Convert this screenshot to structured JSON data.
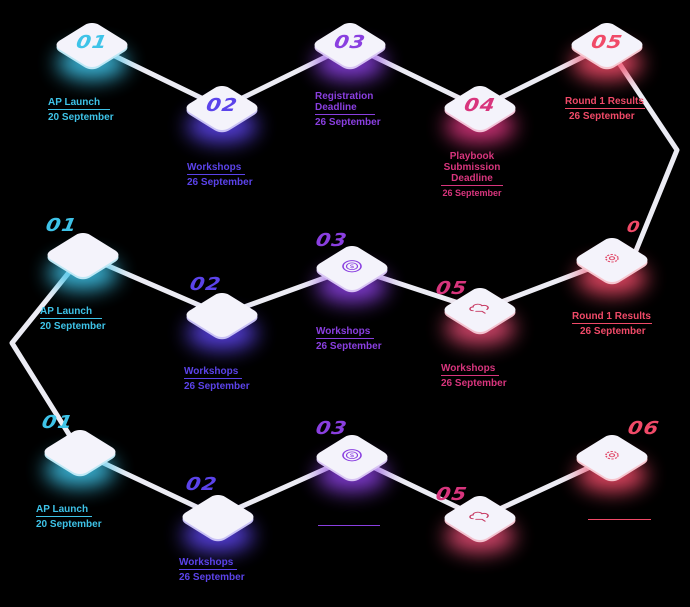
{
  "colors": {
    "cyan": "#3ec3e8",
    "blue": "#5b43ea",
    "purple": "#8a3fe0",
    "magenta": "#d8357d",
    "red": "#f04a68",
    "line": "#ececf4"
  },
  "row1": {
    "n1": "01",
    "n2": "02",
    "n3": "03",
    "n4": "04",
    "n5": "05",
    "l1": {
      "t": "AP Launch",
      "d": "20 September"
    },
    "l2": {
      "t": "Workshops",
      "d": "26 September"
    },
    "l3": {
      "t1": "Registration",
      "t2": "Deadline",
      "d": "26 September"
    },
    "l4": {
      "t1": "Playbook",
      "t2": "Submission",
      "t3": "Deadline",
      "d": "26 September"
    },
    "l5": {
      "t": "Round 1 Results",
      "d": "26 September"
    }
  },
  "row2": {
    "n1": "01",
    "n2": "02",
    "n3": "03",
    "n5": "05",
    "n6": "0",
    "l1": {
      "t": "AP Launch",
      "d": "20 September"
    },
    "l2": {
      "t": "Workshops",
      "d": "26 September"
    },
    "l3": {
      "t": "Workshops",
      "d": "26 September"
    },
    "l5": {
      "t": "Workshops",
      "d": "26 September"
    },
    "l6": {
      "t": "Round 1 Results",
      "d": "26 September"
    }
  },
  "row3": {
    "n1": "01",
    "n2": "02",
    "n3": "03",
    "n5": "05",
    "n6": "06",
    "l1": {
      "t": "AP Launch",
      "d": "20 September"
    },
    "l2": {
      "t": "Workshops",
      "d": "26 September"
    }
  },
  "icons": {
    "coin": "dollar-coin-icon",
    "cloud": "cloud-hand-icon",
    "gear": "gear-icon"
  }
}
